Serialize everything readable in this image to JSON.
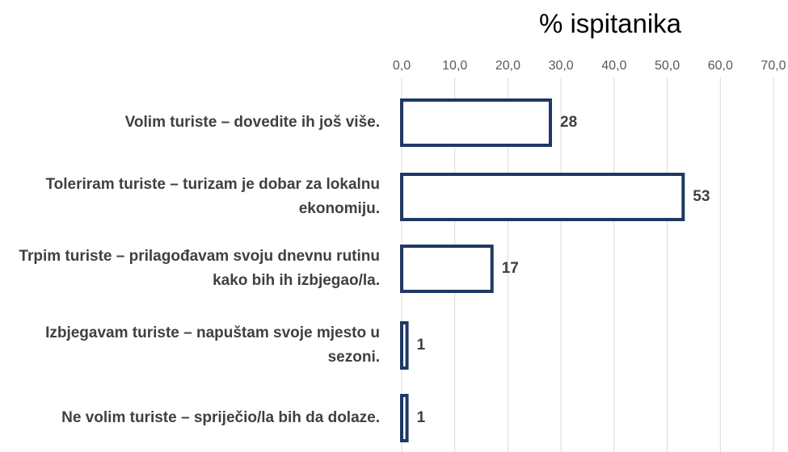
{
  "chart_data": {
    "type": "bar",
    "orientation": "horizontal",
    "title": "% ispitanika",
    "categories": [
      "Volim turiste – dovedite ih još više.",
      "Toleriram turiste – turizam je dobar za lokalnu ekonomiju.",
      "Trpim turiste – prilagođavam svoju dnevnu rutinu kako bih ih izbjegao/la.",
      "Izbjegavam turiste – napuštam svoje mjesto u sezoni.",
      "Ne volim turiste – spriječio/la bih da dolaze."
    ],
    "values": [
      28,
      53,
      17,
      1,
      1
    ],
    "color": "#1f3864",
    "xlim": [
      0,
      70
    ],
    "xticks": [
      {
        "value": 0,
        "label": "0,0"
      },
      {
        "value": 10,
        "label": "10,0"
      },
      {
        "value": 20,
        "label": "20,0"
      },
      {
        "value": 30,
        "label": "30,0"
      },
      {
        "value": 40,
        "label": "40,0"
      },
      {
        "value": 50,
        "label": "50,0"
      },
      {
        "value": 60,
        "label": "60,0"
      },
      {
        "value": 70,
        "label": "70,0"
      }
    ],
    "grid": true
  }
}
